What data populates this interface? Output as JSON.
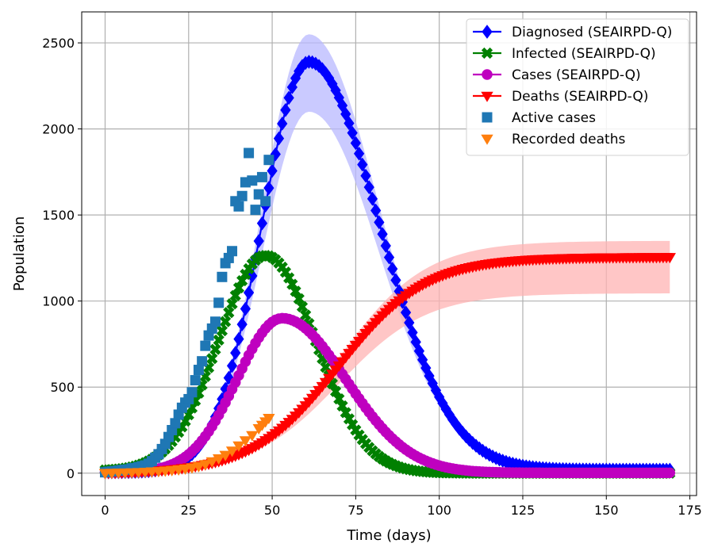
{
  "chart_data": {
    "type": "line",
    "xlabel": "Time (days)",
    "ylabel": "Population",
    "xlim": [
      -7,
      177
    ],
    "ylim": [
      -130,
      2680
    ],
    "xticks": [
      0,
      25,
      50,
      75,
      100,
      125,
      150,
      175
    ],
    "yticks": [
      0,
      500,
      1000,
      1500,
      2000,
      2500
    ],
    "grid": true,
    "legend_position": "top-right",
    "model_series": [
      {
        "name": "Diagnosed (SEAIRPD-Q)",
        "color": "#0000ff",
        "marker": "diamond",
        "x_start": 0,
        "x_end": 169,
        "x_step": 1,
        "peak": 2390,
        "peak_day": 61,
        "rise_width": 14,
        "decay_width": 21,
        "baseline_start": 5,
        "baseline_end": 20,
        "band": {
          "upper_peak": 2550,
          "lower_peak": 2100,
          "fill": "#b8b8ff"
        }
      },
      {
        "name": "Infected (SEAIRPD-Q)",
        "color": "#008000",
        "marker": "x",
        "x_start": 0,
        "x_end": 169,
        "x_step": 1,
        "peak": 1265,
        "peak_day": 48,
        "rise_width": 14,
        "decay_width": 15,
        "baseline_start": 15,
        "baseline_end": 0,
        "band": {
          "upper_peak": 1290,
          "lower_peak": 1240,
          "fill": "#a8dda8"
        }
      },
      {
        "name": "Cases (SEAIRPD-Q)",
        "color": "#bf00bf",
        "marker": "circle",
        "x_start": 0,
        "x_end": 169,
        "x_step": 1,
        "peak": 900,
        "peak_day": 53,
        "rise_width": 13.5,
        "decay_width": 19,
        "baseline_start": 5,
        "baseline_end": 2,
        "band": null
      },
      {
        "name": "Deaths (SEAIRPD-Q)",
        "color": "#ff0000",
        "marker": "triangle-down",
        "x_start": 0,
        "x_end": 169,
        "x_step": 1,
        "cumulative": true,
        "final": 1255,
        "midpoint_day": 70,
        "steepness": 13,
        "band": {
          "upper_final": 1350,
          "lower_final": 1045,
          "fill": "#ffb3b3"
        }
      }
    ],
    "observed_series": [
      {
        "name": "Active cases",
        "color": "#1f77b4",
        "marker": "square",
        "points": [
          [
            0,
            5
          ],
          [
            1,
            8
          ],
          [
            2,
            10
          ],
          [
            3,
            12
          ],
          [
            4,
            15
          ],
          [
            5,
            18
          ],
          [
            6,
            20
          ],
          [
            7,
            22
          ],
          [
            8,
            28
          ],
          [
            9,
            30
          ],
          [
            10,
            35
          ],
          [
            11,
            40
          ],
          [
            12,
            45
          ],
          [
            13,
            55
          ],
          [
            14,
            70
          ],
          [
            15,
            90
          ],
          [
            16,
            110
          ],
          [
            17,
            140
          ],
          [
            18,
            170
          ],
          [
            19,
            210
          ],
          [
            20,
            250
          ],
          [
            21,
            290
          ],
          [
            22,
            340
          ],
          [
            23,
            380
          ],
          [
            24,
            410
          ],
          [
            25,
            430
          ],
          [
            26,
            470
          ],
          [
            27,
            540
          ],
          [
            28,
            600
          ],
          [
            29,
            650
          ],
          [
            30,
            740
          ],
          [
            31,
            800
          ],
          [
            32,
            840
          ],
          [
            33,
            880
          ],
          [
            34,
            990
          ],
          [
            35,
            1140
          ],
          [
            36,
            1220
          ],
          [
            37,
            1250
          ],
          [
            38,
            1290
          ],
          [
            39,
            1580
          ],
          [
            40,
            1550
          ],
          [
            41,
            1610
          ],
          [
            42,
            1690
          ],
          [
            43,
            1860
          ],
          [
            44,
            1700
          ],
          [
            45,
            1530
          ],
          [
            46,
            1620
          ],
          [
            47,
            1720
          ],
          [
            48,
            1580
          ],
          [
            49,
            1820
          ]
        ]
      },
      {
        "name": "Recorded deaths",
        "color": "#ff7f0e",
        "marker": "triangle-down",
        "points": [
          [
            0,
            0
          ],
          [
            2,
            1
          ],
          [
            4,
            2
          ],
          [
            6,
            3
          ],
          [
            8,
            4
          ],
          [
            10,
            5
          ],
          [
            12,
            7
          ],
          [
            14,
            9
          ],
          [
            16,
            11
          ],
          [
            18,
            14
          ],
          [
            20,
            17
          ],
          [
            22,
            21
          ],
          [
            24,
            26
          ],
          [
            26,
            32
          ],
          [
            28,
            40
          ],
          [
            30,
            52
          ],
          [
            32,
            68
          ],
          [
            34,
            85
          ],
          [
            36,
            105
          ],
          [
            38,
            130
          ],
          [
            40,
            160
          ],
          [
            42,
            190
          ],
          [
            44,
            220
          ],
          [
            46,
            260
          ],
          [
            47,
            280
          ],
          [
            48,
            300
          ],
          [
            49,
            320
          ]
        ]
      }
    ]
  }
}
